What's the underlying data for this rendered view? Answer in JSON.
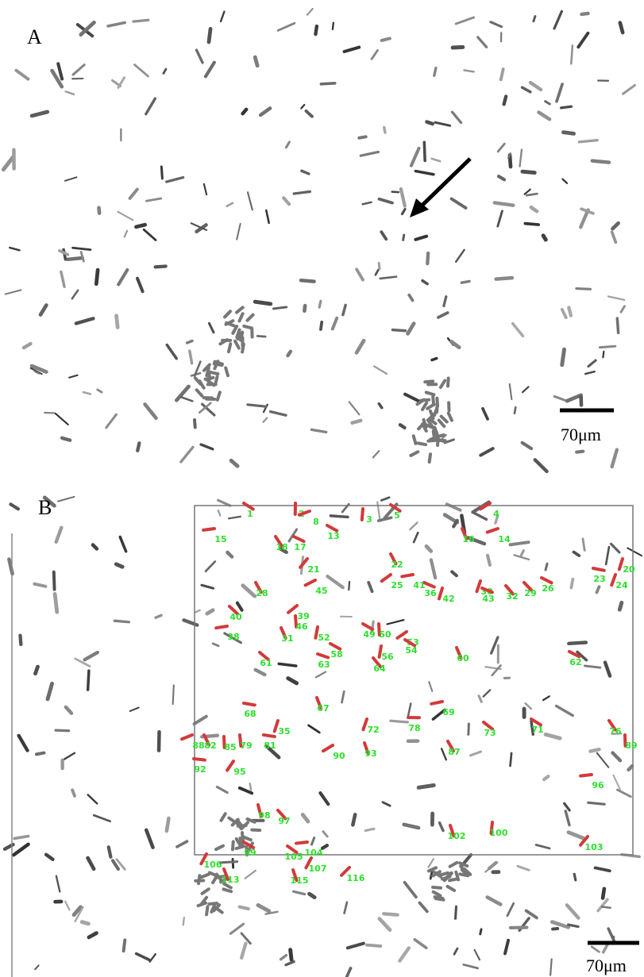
{
  "panel_a": {
    "label": "A",
    "scale_bar": "70μm"
  },
  "panel_b": {
    "label": "B",
    "scale_bar": "70μm",
    "labels": [
      "1",
      "2",
      "8",
      "3",
      "5",
      "4",
      "13",
      "15",
      "16",
      "14",
      "18",
      "17",
      "21",
      "22",
      "23",
      "24",
      "20",
      "25",
      "26",
      "29",
      "32",
      "30",
      "45",
      "28",
      "40",
      "39",
      "36",
      "42",
      "43",
      "41",
      "46",
      "31",
      "52",
      "49",
      "50",
      "53",
      "54",
      "58",
      "38",
      "56",
      "63",
      "64",
      "61",
      "60",
      "62",
      "67",
      "68",
      "69",
      "72",
      "78",
      "73",
      "71",
      "76",
      "89",
      "35",
      "88",
      "82",
      "85",
      "79",
      "81",
      "87",
      "90",
      "93",
      "92",
      "95",
      "96",
      "98",
      "97",
      "99",
      "102",
      "100",
      "103",
      "105",
      "104",
      "106",
      "107",
      "115",
      "116",
      "113"
    ]
  }
}
